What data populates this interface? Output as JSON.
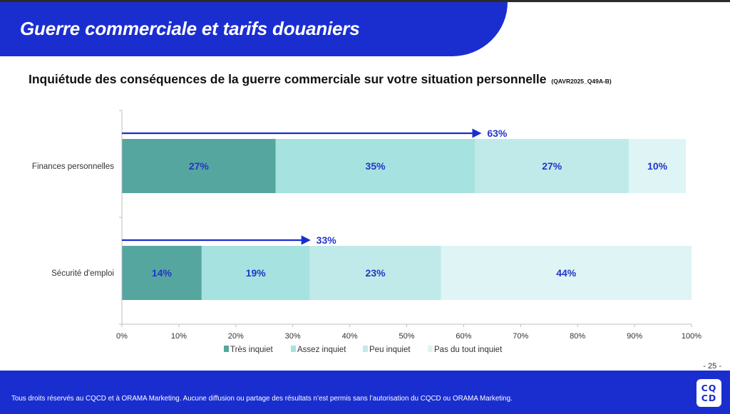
{
  "header": {
    "title": "Guerre commerciale et tarifs douaniers"
  },
  "chart_title": {
    "text": "Inquiétude des conséquences de la guerre commerciale sur votre situation personnelle",
    "code": "(QAVR2025_Q49A-B)"
  },
  "colors": {
    "brand_blue": "#1a2ed0",
    "label_blue": "#2235c8"
  },
  "chart_data": {
    "type": "bar",
    "orientation": "horizontal",
    "stacked": true,
    "title": "Inquiétude des conséquences de la guerre commerciale sur votre situation personnelle",
    "categories": [
      "Finances personnelles",
      "Sécurité d'emploi"
    ],
    "series": [
      {
        "name": "Très inquiet",
        "color": "#56a6a0",
        "values": [
          27,
          14
        ]
      },
      {
        "name": "Assez inquiet",
        "color": "#a6e2df",
        "values": [
          35,
          19
        ]
      },
      {
        "name": "Peu inquiet",
        "color": "#c0eae9",
        "values": [
          27,
          23
        ]
      },
      {
        "name": "Pas du tout inquiet",
        "color": "#def4f5",
        "values": [
          10,
          44
        ]
      }
    ],
    "data_labels": [
      [
        "27%",
        "35%",
        "27%",
        "10%"
      ],
      [
        "14%",
        "19%",
        "23%",
        "44%"
      ]
    ],
    "annotations": [
      {
        "category": "Finances personnelles",
        "type": "arrow",
        "value": 63,
        "label": "63%"
      },
      {
        "category": "Sécurité d'emploi",
        "type": "arrow",
        "value": 33,
        "label": "33%"
      }
    ],
    "xlim": [
      0,
      100
    ],
    "xticks": [
      "0%",
      "10%",
      "20%",
      "30%",
      "40%",
      "50%",
      "60%",
      "70%",
      "80%",
      "90%",
      "100%"
    ],
    "xlabel": "",
    "ylabel": "",
    "grid": false,
    "legend": {
      "position": "bottom",
      "entries": [
        "Très inquiet",
        "Assez inquiet",
        "Peu inquiet",
        "Pas du tout inquiet"
      ]
    }
  },
  "footer": {
    "page_number": "- 25 -",
    "copyright": "Tous droits réservés au CQCD et à ORAMA Marketing. Aucune diffusion ou partage des résultats n’est permis sans l’autorisation du CQCD ou ORAMA Marketing.",
    "logo_line1": "CQ",
    "logo_line2": "CD"
  }
}
